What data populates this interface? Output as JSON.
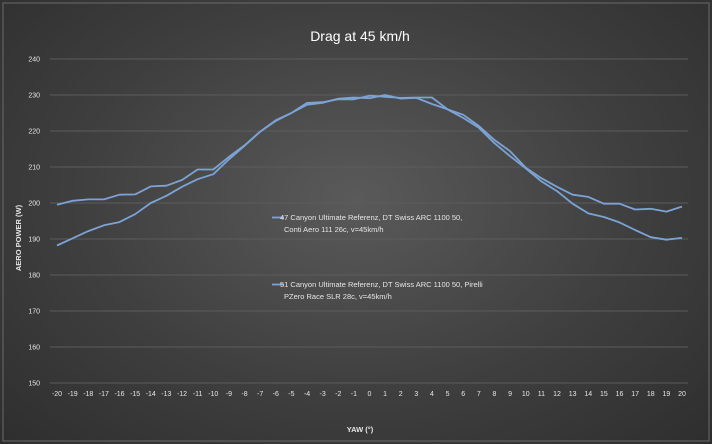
{
  "chart_data": {
    "type": "line",
    "title": "Drag at 45 km/h",
    "xlabel": "YAW (°)",
    "ylabel": "AERO POWER (W)",
    "xlim": [
      -20,
      20
    ],
    "ylim": [
      150,
      240
    ],
    "yticks": [
      150,
      160,
      170,
      180,
      190,
      200,
      210,
      220,
      230,
      240
    ],
    "x": [
      -20,
      -19,
      -18,
      -17,
      -16,
      -15,
      -14,
      -13,
      -12,
      -11,
      -10,
      -9,
      -8,
      -7,
      -6,
      -5,
      -4,
      -3,
      -2,
      -1,
      0,
      1,
      2,
      3,
      4,
      5,
      6,
      7,
      8,
      9,
      10,
      11,
      12,
      13,
      14,
      15,
      16,
      17,
      18,
      19,
      20
    ],
    "grid": "horizontal",
    "series": [
      {
        "name": "47 Canyon Ultimate Referenz, DT Swiss ARC 1100 50, Conti Aero 111 26c, v=45km/h",
        "color": "#7ca3d6",
        "values": [
          199.5,
          200.6,
          201.0,
          201.0,
          202.3,
          202.4,
          204.6,
          204.8,
          206.4,
          209.3,
          209.3,
          212.8,
          216.0,
          219.8,
          222.8,
          225.0,
          227.8,
          228.0,
          228.8,
          228.8,
          229.8,
          229.5,
          229.2,
          229.3,
          229.3,
          226.0,
          224.5,
          221.4,
          217.5,
          214.4,
          209.8,
          206.9,
          204.5,
          202.3,
          201.7,
          199.8,
          199.8,
          198.2,
          198.4,
          197.6,
          199.0
        ]
      },
      {
        "name": "51 Canyon Ultimate Referenz, DT Swiss ARC 1100 50, Pirelli PZero Race SLR 28c, v=45km/h",
        "color": "#7ca3d6",
        "values": [
          188.2,
          190.2,
          192.2,
          193.8,
          194.7,
          196.9,
          200.0,
          202.0,
          204.5,
          206.6,
          208.0,
          212.1,
          215.9,
          219.8,
          223.0,
          225.0,
          227.3,
          227.8,
          229.0,
          229.3,
          229.1,
          230.0,
          229.0,
          229.2,
          227.5,
          226.0,
          223.6,
          220.9,
          216.6,
          213.0,
          209.6,
          206.0,
          203.3,
          199.8,
          197.1,
          196.1,
          194.6,
          192.5,
          190.5,
          189.8,
          190.3
        ]
      }
    ]
  }
}
